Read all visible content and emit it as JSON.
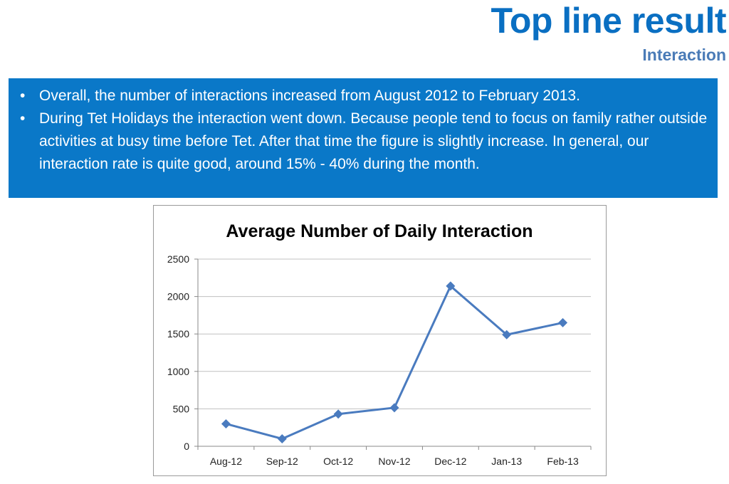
{
  "header": {
    "title": "Top line result",
    "subtitle": "Interaction"
  },
  "summary": {
    "bullets": [
      "Overall, the number of interactions increased from August 2012 to February 2013.",
      "During Tet Holidays the interaction went down. Because people tend to focus on family rather outside activities at busy time before Tet. After that time the figure is slightly increase. In general, our interaction rate is quite good, around 15% - 40% during the month."
    ]
  },
  "colors": {
    "title": "#0a6fc2",
    "subtitle": "#4a7bb7",
    "box": "#0a78c8",
    "series": "#4a7bbf",
    "grid": "#c0c0c0"
  },
  "chart_data": {
    "type": "line",
    "title": "Average Number of Daily Interaction",
    "categories": [
      "Aug-12",
      "Sep-12",
      "Oct-12",
      "Nov-12",
      "Dec-12",
      "Jan-13",
      "Feb-13"
    ],
    "values": [
      300,
      100,
      430,
      515,
      2140,
      1490,
      1650
    ],
    "ylim": [
      0,
      2500
    ],
    "yticks": [
      0,
      500,
      1000,
      1500,
      2000,
      2500
    ],
    "grid": true,
    "legend": "none",
    "marker": "diamond"
  }
}
